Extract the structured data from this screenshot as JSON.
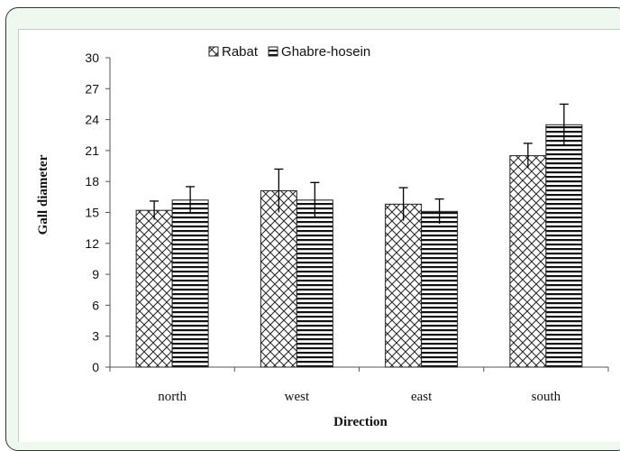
{
  "chart_data": {
    "type": "bar",
    "categories": [
      "north",
      "west",
      "east",
      "south"
    ],
    "series": [
      {
        "name": "Rabat",
        "pattern": "crosshatch",
        "values": [
          15.2,
          17.1,
          15.8,
          20.5
        ],
        "errors": [
          0.9,
          2.1,
          1.6,
          1.2
        ]
      },
      {
        "name": "Ghabre-hosein",
        "pattern": "horizontal-stripes",
        "values": [
          16.2,
          16.2,
          15.1,
          23.5
        ],
        "errors": [
          1.3,
          1.7,
          1.2,
          2.0
        ]
      }
    ],
    "xlabel": "Direction",
    "ylabel": "Gall diameter",
    "ylim": [
      0,
      30
    ],
    "yticks": [
      0,
      3,
      6,
      9,
      12,
      15,
      18,
      21,
      24,
      27,
      30
    ],
    "legend_position": "top",
    "grid": false,
    "colors": {
      "bar_fill": "#ffffff",
      "pattern_stroke": "#222222",
      "frame_bg": "#eef8ee"
    }
  }
}
